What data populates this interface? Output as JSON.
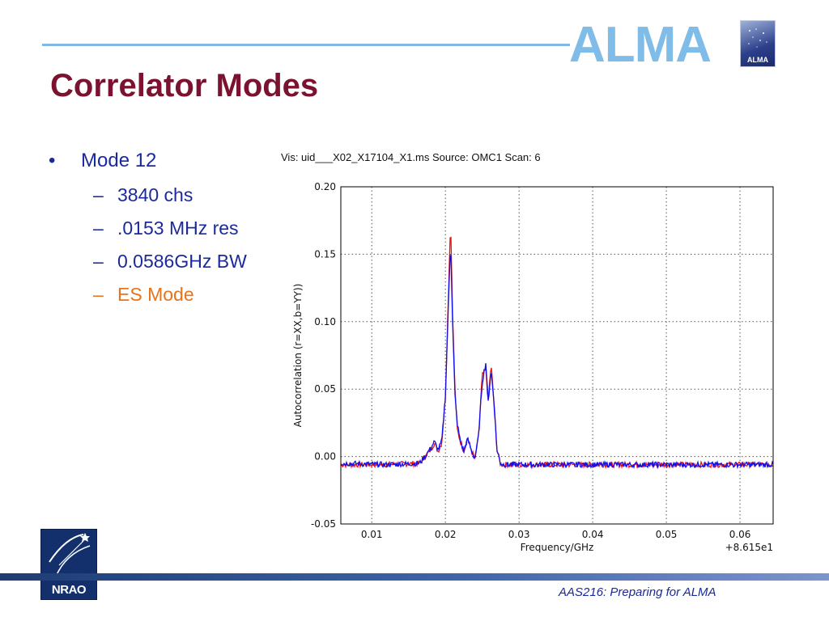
{
  "header": {
    "title": "Correlator Modes",
    "alma_wordmark": "ALMA",
    "alma_badge_text": "ALMA"
  },
  "bullets": {
    "main": "Mode 12",
    "sub": [
      {
        "text": "3840 chs",
        "color": "#1a2a9c"
      },
      {
        "text": ".0153 MHz res",
        "color": "#1a2a9c"
      },
      {
        "text": "0.0586GHz BW",
        "color": "#1a2a9c"
      },
      {
        "text": "ES Mode",
        "color": "#e8731a"
      }
    ]
  },
  "plot_title": "Vis: uid___X02_X17104_X1.ms Source: OMC1 Scan: 6",
  "chart_data": {
    "type": "line",
    "title": "Vis: uid___X02_X17104_X1.ms Source: OMC1 Scan: 6",
    "xlabel": "Frequency/GHz",
    "ylabel": "Autocorrelation (r=XX,b=YY))",
    "x_offset_label": "+8.615e1",
    "xlim": [
      0.0058,
      0.0645
    ],
    "ylim": [
      -0.05,
      0.2
    ],
    "xticks": [
      0.01,
      0.02,
      0.03,
      0.04,
      0.05,
      0.06
    ],
    "xtick_labels": [
      "0.01",
      "0.02",
      "0.03",
      "0.04",
      "0.05",
      "0.06"
    ],
    "yticks": [
      -0.05,
      0.0,
      0.05,
      0.1,
      0.15,
      0.2
    ],
    "ytick_labels": [
      "-0.05",
      "0.00",
      "0.05",
      "0.10",
      "0.15",
      "0.20"
    ],
    "grid": true,
    "series": [
      {
        "color": "#ee1111",
        "x": [
          0.0058,
          0.012,
          0.0165,
          0.018,
          0.0185,
          0.019,
          0.0195,
          0.02,
          0.0203,
          0.0207,
          0.021,
          0.0213,
          0.0216,
          0.022,
          0.0225,
          0.023,
          0.0235,
          0.024,
          0.0245,
          0.025,
          0.0255,
          0.0258,
          0.0262,
          0.0266,
          0.027,
          0.0275,
          0.028,
          0.035,
          0.045,
          0.055,
          0.0645
        ],
        "values": [
          -0.006,
          -0.006,
          -0.005,
          0.005,
          0.01,
          0.004,
          0.01,
          0.045,
          0.1,
          0.175,
          0.1,
          0.05,
          0.02,
          0.012,
          0.004,
          0.014,
          0.005,
          -0.002,
          0.015,
          0.06,
          0.065,
          0.04,
          0.068,
          0.04,
          0.005,
          -0.006,
          -0.006,
          -0.006,
          -0.006,
          -0.006,
          -0.006
        ]
      },
      {
        "color": "#1111ee",
        "x": [
          0.0058,
          0.012,
          0.0165,
          0.018,
          0.0185,
          0.019,
          0.0195,
          0.02,
          0.0203,
          0.0207,
          0.021,
          0.0213,
          0.0216,
          0.022,
          0.0225,
          0.023,
          0.0235,
          0.024,
          0.0245,
          0.025,
          0.0255,
          0.0258,
          0.0262,
          0.0266,
          0.027,
          0.0275,
          0.028,
          0.035,
          0.045,
          0.055,
          0.0645
        ],
        "values": [
          -0.005,
          -0.006,
          -0.005,
          0.006,
          0.011,
          0.005,
          0.011,
          0.045,
          0.095,
          0.16,
          0.095,
          0.045,
          0.025,
          0.012,
          0.004,
          0.013,
          0.005,
          -0.002,
          0.015,
          0.055,
          0.07,
          0.04,
          0.064,
          0.04,
          0.005,
          -0.005,
          -0.006,
          -0.006,
          -0.006,
          -0.006,
          -0.006
        ]
      }
    ]
  },
  "footer": {
    "event": "AAS216: Preparing for ALMA",
    "nrao_text": "NRAO"
  }
}
